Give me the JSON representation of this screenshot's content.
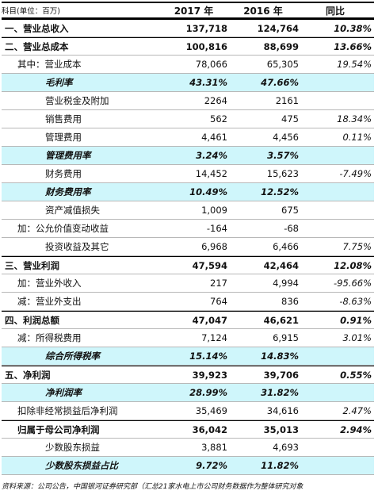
{
  "table": {
    "header": [
      "科目(单位：百万)",
      "2017 年",
      "2016 年",
      "同比"
    ],
    "rows": [
      {
        "label": "一、营业总收入",
        "y2017": "137,718",
        "y2016": "124,764",
        "yoy": "10.38%",
        "emphasis": "bold",
        "level": 0
      },
      {
        "label": "二、营业总成本",
        "y2017": "100,816",
        "y2016": "88,699",
        "yoy": "13.66%",
        "emphasis": "bold",
        "level": 0
      },
      {
        "label": "其中：营业成本",
        "y2017": "78,066",
        "y2016": "65,305",
        "yoy": "19.54%",
        "emphasis": "normal",
        "level": 1
      },
      {
        "label": "毛利率",
        "y2017": "43.31%",
        "y2016": "47.66%",
        "emphasis": "rate",
        "level": 2
      },
      {
        "label": "营业税金及附加",
        "y2017": "2264",
        "y2016": "2161",
        "emphasis": "normal",
        "level": 2
      },
      {
        "label": "销售费用",
        "y2017": "562",
        "y2016": "475",
        "yoy": "18.34%",
        "emphasis": "normal",
        "level": 2
      },
      {
        "label": "管理费用",
        "y2017": "4,461",
        "y2016": "4,456",
        "yoy": "0.11%",
        "emphasis": "normal",
        "level": 2
      },
      {
        "label": "管理费用率",
        "y2017": "3.24%",
        "y2016": "3.57%",
        "emphasis": "rate",
        "level": 2
      },
      {
        "label": "财务费用",
        "y2017": "14,452",
        "y2016": "15,623",
        "yoy": "-7.49%",
        "emphasis": "normal",
        "level": 2
      },
      {
        "label": "财务费用率",
        "y2017": "10.49%",
        "y2016": "12.52%",
        "emphasis": "rate",
        "level": 2
      },
      {
        "label": "资产减值损失",
        "y2017": "1,009",
        "y2016": "675",
        "emphasis": "normal",
        "level": 2
      },
      {
        "label": "加：公允价值变动收益",
        "y2017": "-164",
        "y2016": "-68",
        "emphasis": "normal",
        "level": 1
      },
      {
        "label": "投资收益及其它",
        "y2017": "6,968",
        "y2016": "6,466",
        "yoy": "7.75%",
        "emphasis": "normal",
        "level": 2
      },
      {
        "label": "三、营业利润",
        "y2017": "47,594",
        "y2016": "42,464",
        "yoy": "12.08%",
        "emphasis": "bold",
        "level": 0
      },
      {
        "label": "加：营业外收入",
        "y2017": "217",
        "y2016": "4,994",
        "yoy": "-95.66%",
        "emphasis": "normal",
        "level": 1
      },
      {
        "label": "减：营业外支出",
        "y2017": "764",
        "y2016": "836",
        "yoy": "-8.63%",
        "emphasis": "normal",
        "level": 1
      },
      {
        "label": "四、利润总额",
        "y2017": "47,047",
        "y2016": "46,621",
        "yoy": "0.91%",
        "emphasis": "bold",
        "level": 0
      },
      {
        "label": "减：所得税费用",
        "y2017": "7,124",
        "y2016": "6,915",
        "yoy": "3.01%",
        "emphasis": "normal",
        "level": 1
      },
      {
        "label": "综合所得税率",
        "y2017": "15.14%",
        "y2016": "14.83%",
        "emphasis": "rate",
        "level": 2
      },
      {
        "label": "五、净利润",
        "y2017": "39,923",
        "y2016": "39,706",
        "yoy": "0.55%",
        "emphasis": "bold",
        "level": 0
      },
      {
        "label": "净利润率",
        "y2017": "28.99%",
        "y2016": "31.82%",
        "emphasis": "rate",
        "level": 2
      },
      {
        "label": "扣除非经常损益后净利润",
        "y2017": "35,469",
        "y2016": "34,616",
        "yoy": "2.47%",
        "emphasis": "normal",
        "level": 1
      },
      {
        "label": "归属于母公司净利润",
        "y2017": "36,042",
        "y2016": "35,013",
        "yoy": "2.94%",
        "emphasis": "bold",
        "level": 1
      },
      {
        "label": "少数股东损益",
        "y2017": "3,881",
        "y2016": "4,693",
        "emphasis": "normal",
        "level": 2
      },
      {
        "label": "少数股东损益占比",
        "y2017": "9.72%",
        "y2016": "11.82%",
        "emphasis": "rate",
        "level": 2
      }
    ]
  },
  "footer": "资料来源：公司公告，中国银河证券研究部（汇总21家水电上市公司财务数据作为整体研究对象"
}
